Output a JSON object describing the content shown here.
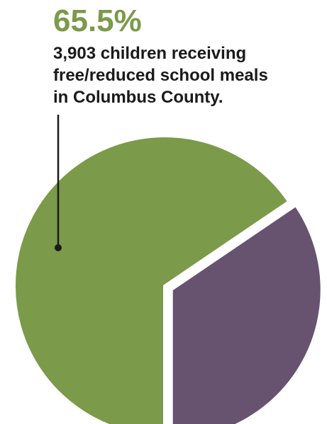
{
  "callout": {
    "value": "65.5%",
    "lines": [
      "3,903 children receiving",
      "free/reduced school meals",
      "in Columbus County."
    ]
  },
  "colors": {
    "primary": "#7b9a4a",
    "secondary": "#675270",
    "leader": "#1a1a1a",
    "gap": "#ffffff"
  },
  "chart_data": {
    "type": "pie",
    "title": "",
    "slices": [
      {
        "label": "3,903 children receiving free/reduced school meals in Columbus County.",
        "value": 65.5,
        "color": "#7b9a4a"
      },
      {
        "label": "",
        "value": 34.5,
        "color": "#675270"
      }
    ],
    "legend": "none",
    "exploded_slice_index": 1
  }
}
